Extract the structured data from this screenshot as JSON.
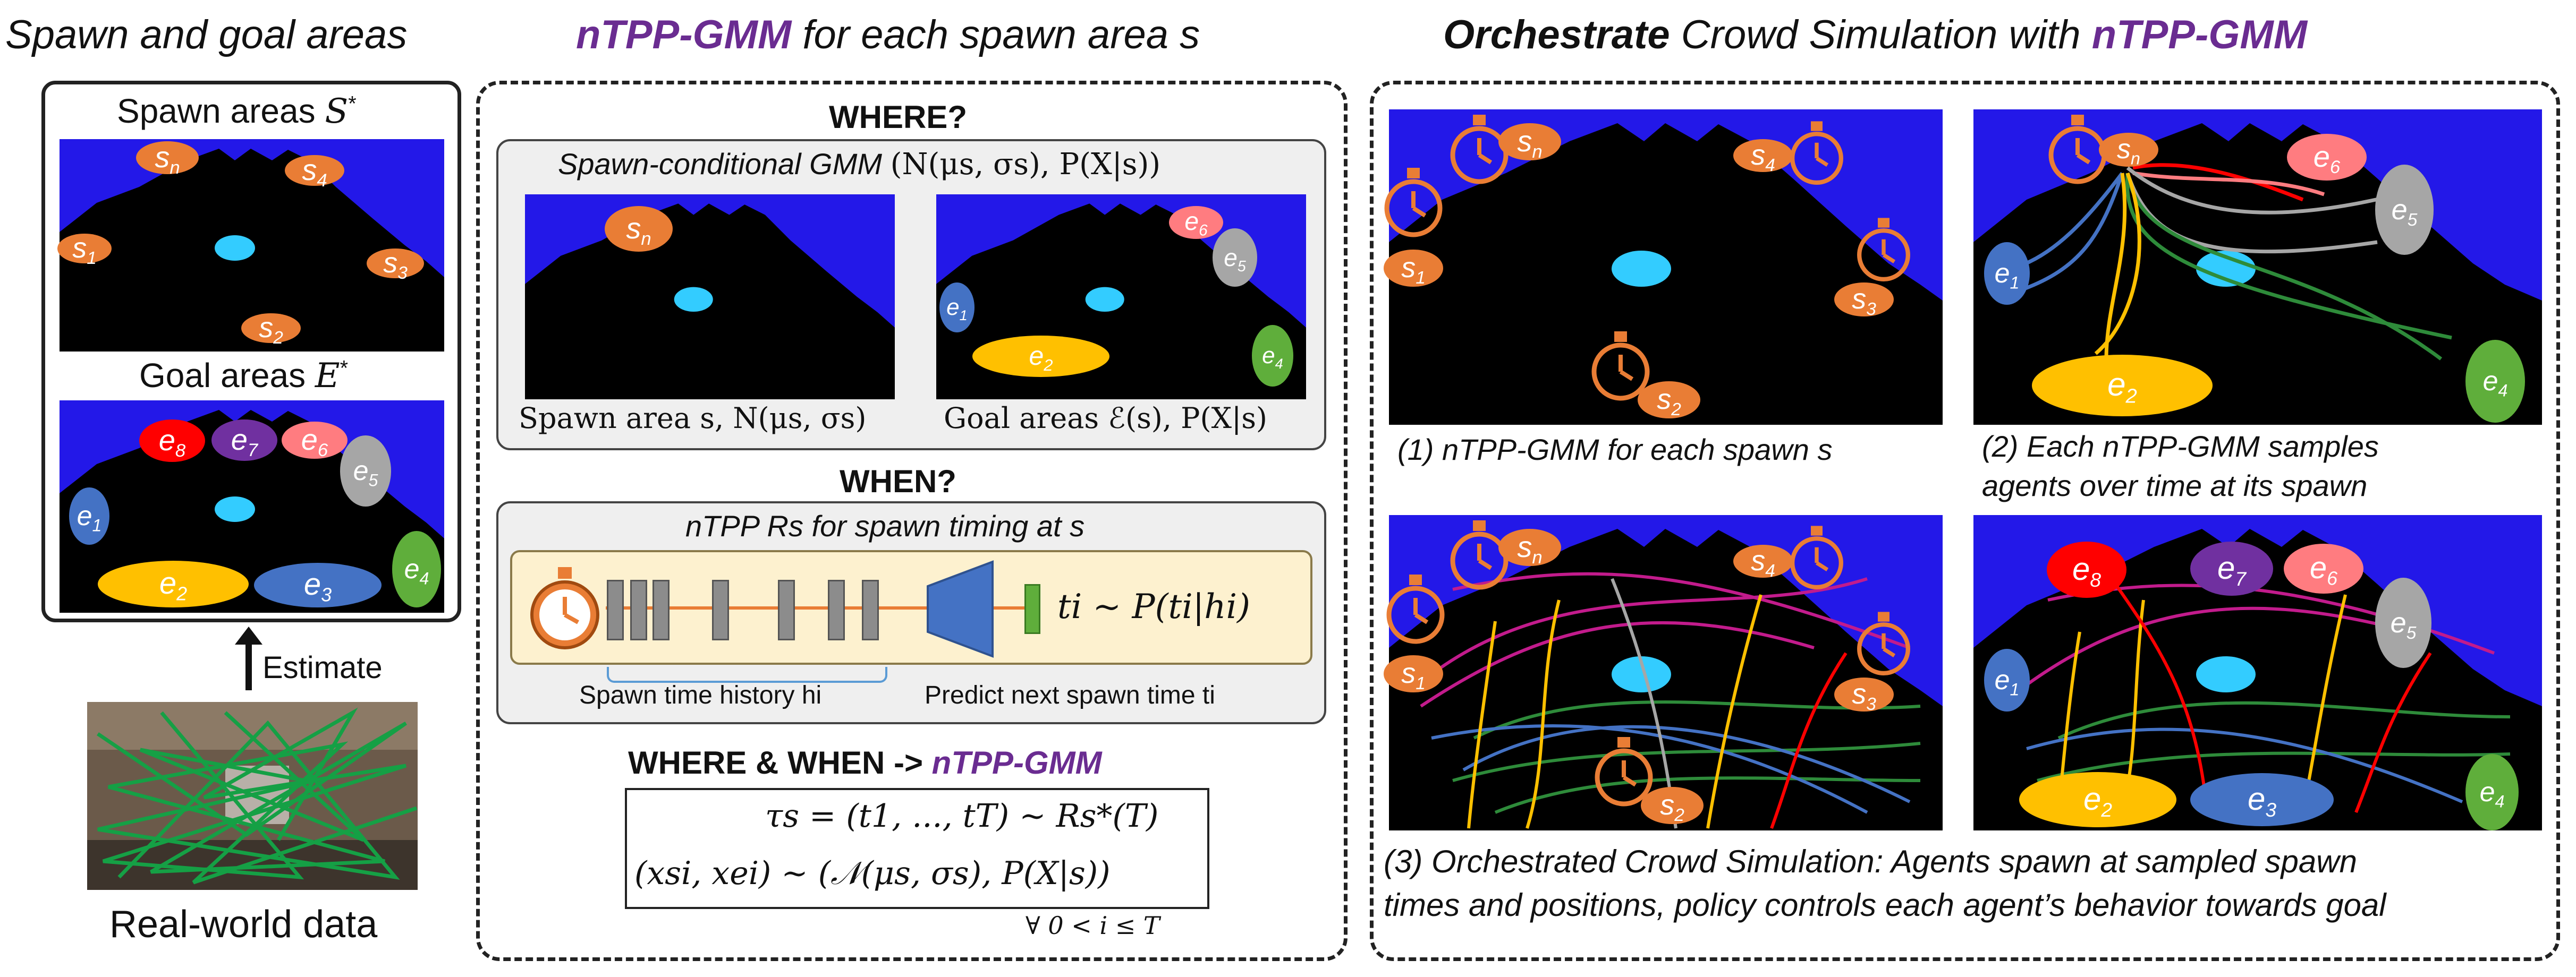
{
  "colors": {
    "background_blue": "#2318e8",
    "walkable_black": "#000000",
    "fountain_cyan": "#33ccff",
    "spawn_orange": "#e97d35",
    "goal_blue": "#4472c4",
    "goal_yellow": "#ffc000",
    "goal_green": "#5fae3b",
    "goal_grey": "#a6a6a6",
    "goal_pink": "#ff7c80",
    "goal_red": "#ff0000",
    "goal_purple": "#7030a0",
    "title_purple": "#6a2c91"
  },
  "left": {
    "title": "Spawn and goal areas",
    "spawn_title": "Spawn areas",
    "spawn_symbol": "S",
    "spawn_sup": "*",
    "goal_title": "Goal areas",
    "goal_symbol": "E",
    "goal_sup": "*",
    "estimate_label": "Estimate",
    "data_label": "Real-world data"
  },
  "spawn_labels": [
    "s",
    "s",
    "s",
    "s",
    "s"
  ],
  "spawn_subs": [
    "n",
    "4",
    "1",
    "3",
    "2"
  ],
  "goal_subs": [
    "8",
    "7",
    "6",
    "5",
    "1",
    "4",
    "2",
    "3"
  ],
  "middle": {
    "title_emph": "nTPP-GMM",
    "title_rest": " for each spawn area s",
    "where_heading": "WHERE?",
    "gmm_title": "Spawn-conditional GMM (N(μ",
    "gmm_title_full": "Spawn-conditional GMM",
    "gmm_formula": "(N(μs, σs), P(X|s))",
    "spawn_caption": "Spawn area s, N(μs, σs)",
    "goal_caption": "Goal areas ℰ(s), P(X|s)",
    "when_heading": "WHEN?",
    "ntpp_title": "nTPP Rs for spawn timing at s",
    "time_formula": "ti ~ P(ti|hi)",
    "history_caption": "Spawn time history hi",
    "predict_caption": "Predict next spawn time ti",
    "both_heading": "WHERE & WHEN ->",
    "both_emph": "nTPP-GMM",
    "eq1": "τs = (t1, ..., tT) ~ Rs*(T)",
    "eq2": "(xsi, xei) ~ (𝒩(μs, σs), P(X|s))",
    "eq3": "∀ 0 < i ≤ T"
  },
  "right": {
    "title_bold": "Orchestrate",
    "title_rest": " Crowd Simulation with ",
    "title_emph": "nTPP-GMM",
    "cap1": "(1) nTPP-GMM for each spawn s",
    "cap2_line1": "(2) Each nTPP-GMM samples",
    "cap2_line2": "agents over time at its spawn",
    "cap3_line1": "(3) Orchestrated Crowd Simulation: Agents spawn at sampled spawn",
    "cap3_line2": "times and positions, policy controls each agent’s behavior towards goal"
  }
}
